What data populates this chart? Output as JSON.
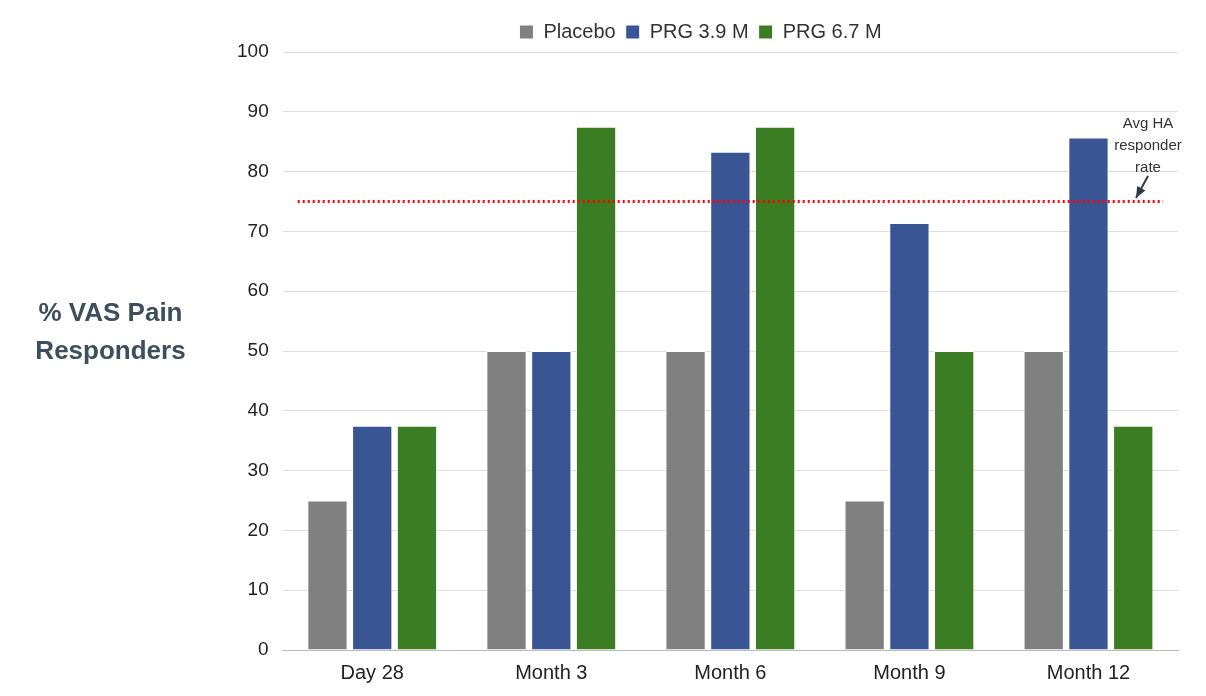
{
  "chart_data": {
    "type": "bar",
    "ylabel": "% VAS Pain Responders",
    "categories": [
      "Day 28",
      "Month 3",
      "Month 6",
      "Month 9",
      "Month 12"
    ],
    "series": [
      {
        "name": "Placebo",
        "color": "#808080",
        "values": [
          25,
          50,
          50,
          25,
          50
        ]
      },
      {
        "name": "PRG 3.9 M",
        "color": "#3a5594",
        "values": [
          37.5,
          50,
          83.3,
          71.4,
          85.7
        ]
      },
      {
        "name": "PRG 6.7 M",
        "color": "#3b7d23",
        "values": [
          37.5,
          87.5,
          87.5,
          50,
          37.5
        ]
      }
    ],
    "ylim": [
      0,
      100
    ],
    "yticks": [
      0,
      10,
      20,
      30,
      40,
      50,
      60,
      70,
      80,
      90,
      100
    ],
    "grid": "y",
    "legend": "top",
    "ref_lines": [
      {
        "axis": "y",
        "value": 75,
        "label": "Avg HA responder rate",
        "color": "#ff0000",
        "line_style": "dotted"
      }
    ]
  }
}
